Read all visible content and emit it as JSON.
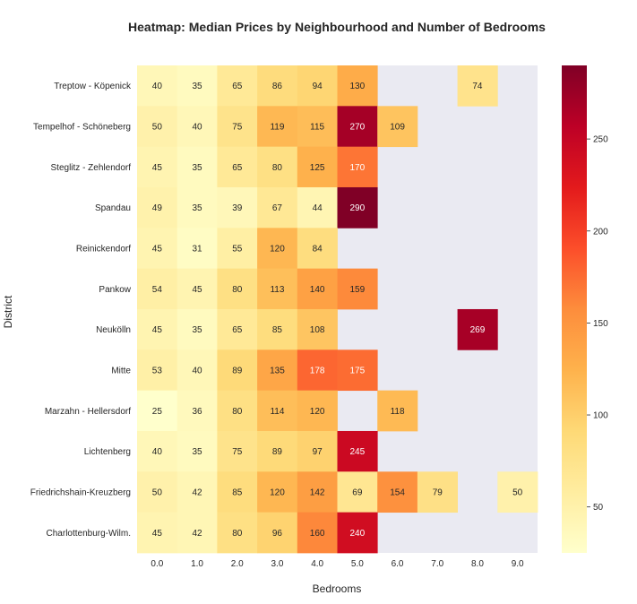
{
  "chart_data": {
    "type": "heatmap",
    "title": "Heatmap: Median Prices by Neighbourhood and Number of Bedrooms",
    "xlabel": "Bedrooms",
    "ylabel": "District",
    "x_categories": [
      "0.0",
      "1.0",
      "2.0",
      "3.0",
      "4.0",
      "5.0",
      "6.0",
      "7.0",
      "8.0",
      "9.0"
    ],
    "y_categories": [
      "Treptow - Köpenick",
      "Tempelhof - Schöneberg",
      "Steglitz - Zehlendorf",
      "Spandau",
      "Reinickendorf",
      "Pankow",
      "Neukölln",
      "Mitte",
      "Marzahn - Hellersdorf",
      "Lichtenberg",
      "Friedrichshain-Kreuzberg",
      "Charlottenburg-Wilm."
    ],
    "values": [
      [
        40,
        35,
        65,
        86,
        94,
        130,
        null,
        null,
        74,
        null
      ],
      [
        50,
        40,
        75,
        119,
        115,
        270,
        109,
        null,
        null,
        null
      ],
      [
        45,
        35,
        65,
        80,
        125,
        170,
        null,
        null,
        null,
        null
      ],
      [
        49,
        35,
        39,
        67,
        44,
        290,
        null,
        null,
        null,
        null
      ],
      [
        45,
        31,
        55,
        120,
        84,
        null,
        null,
        null,
        null,
        null
      ],
      [
        54,
        45,
        80,
        113,
        140,
        159,
        null,
        null,
        null,
        null
      ],
      [
        45,
        35,
        65,
        85,
        108,
        null,
        null,
        null,
        269,
        null
      ],
      [
        53,
        40,
        89,
        135,
        178,
        175,
        null,
        null,
        null,
        null
      ],
      [
        25,
        36,
        80,
        114,
        120,
        null,
        118,
        null,
        null,
        null
      ],
      [
        40,
        35,
        75,
        89,
        97,
        245,
        null,
        null,
        null,
        null
      ],
      [
        50,
        42,
        85,
        120,
        142,
        69,
        154,
        79,
        null,
        50
      ],
      [
        45,
        42,
        80,
        96,
        160,
        240,
        null,
        null,
        null,
        null
      ]
    ],
    "colormap": "YlOrRd",
    "vmin": 25,
    "vmax": 290,
    "colorbar_ticks": [
      50,
      100,
      150,
      200,
      250
    ],
    "missing_color": "#eaeaf2"
  }
}
